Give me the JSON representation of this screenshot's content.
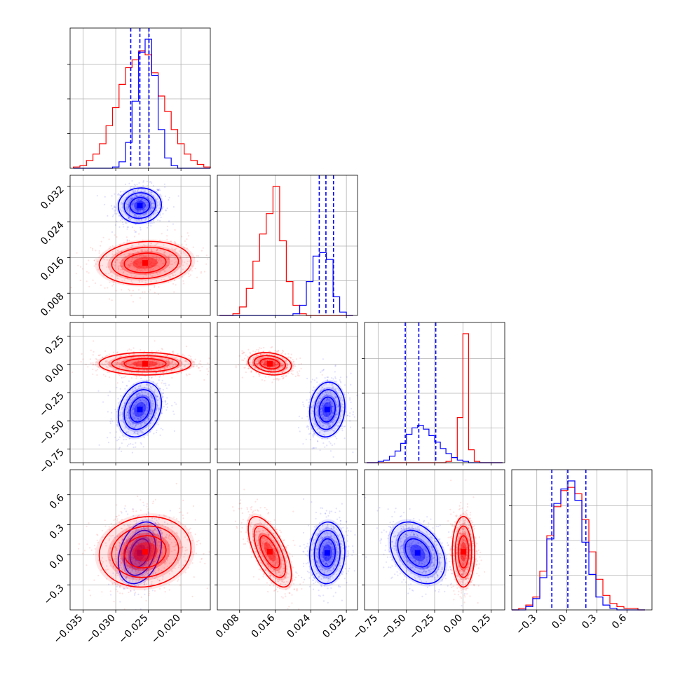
{
  "chart_data": {
    "type": "corner",
    "title": "",
    "grid": true,
    "colors": {
      "blue": "#0000ff",
      "red": "#ff0000"
    },
    "params": [
      {
        "range": [
          -0.037,
          -0.0155
        ],
        "ticks": [
          -0.035,
          -0.03,
          -0.025,
          -0.02
        ],
        "tick_labels": [
          "−0.035",
          "−0.030",
          "−0.025",
          "−0.020"
        ]
      },
      {
        "range": [
          0.003,
          0.0345
        ],
        "ticks": [
          0.008,
          0.016,
          0.024,
          0.032
        ],
        "tick_labels": [
          "0.008",
          "0.016",
          "0.024",
          "0.032"
        ]
      },
      {
        "range": [
          -0.87,
          0.37
        ],
        "ticks": [
          -0.75,
          -0.5,
          -0.25,
          0.0,
          0.25
        ],
        "tick_labels": [
          "−0.75",
          "−0.50",
          "−0.25",
          "0.00",
          "0.25"
        ]
      },
      {
        "range": [
          -0.55,
          0.85
        ],
        "ticks": [
          -0.3,
          0.0,
          0.3,
          0.6
        ],
        "tick_labels": [
          "−0.3",
          "0.0",
          "0.3",
          "0.6"
        ]
      }
    ],
    "y_axis_label_overrides": {
      "1": {
        "ticks": [
          0.008,
          0.016,
          0.024,
          0.032
        ],
        "tick_labels": [
          "0.008",
          "0.016",
          "0.024",
          "0.032"
        ]
      }
    },
    "series": [
      {
        "color": "#0000ff",
        "mean": [
          -0.0263,
          0.0277,
          -0.4,
          0.02
        ],
        "sd": [
          0.0015,
          0.0018,
          0.11,
          0.14
        ],
        "corr": [
          [
            1,
            0.05,
            0.25,
            0.3
          ],
          [
            0.05,
            1,
            0.1,
            0.05
          ],
          [
            0.25,
            0.1,
            1,
            -0.35
          ],
          [
            0.3,
            0.05,
            -0.35,
            1
          ]
        ],
        "quantiles": [
          [
            -0.0277,
            -0.0263,
            -0.0249
          ],
          [
            0.0259,
            0.0274,
            0.0291
          ],
          [
            -0.51,
            -0.39,
            -0.24
          ],
          [
            -0.15,
            0.01,
            0.19
          ]
        ]
      },
      {
        "color": "#ff0000",
        "mean": [
          -0.0255,
          0.0148,
          0.005,
          0.03
        ],
        "sd": [
          0.0032,
          0.0022,
          0.045,
          0.16
        ],
        "corr": [
          [
            1,
            0.1,
            0.0,
            0.1
          ],
          [
            0.1,
            1,
            -0.2,
            -0.65
          ],
          [
            0.0,
            -0.2,
            1,
            0.0
          ],
          [
            0.1,
            -0.65,
            0.0,
            1
          ]
        ]
      }
    ],
    "histograms": [
      {
        "edges": [
          -0.0365,
          -0.0355,
          -0.0345,
          -0.0335,
          -0.0325,
          -0.0315,
          -0.0305,
          -0.0295,
          -0.0285,
          -0.0275,
          -0.0265,
          -0.0255,
          -0.0245,
          -0.0235,
          -0.0225,
          -0.0215,
          -0.0205,
          -0.0195,
          -0.0185,
          -0.0175,
          -0.0165,
          -0.0155
        ],
        "blue": [
          0,
          0,
          0,
          0,
          0,
          0,
          1,
          5,
          20,
          52,
          90,
          100,
          72,
          30,
          8,
          2,
          0,
          0,
          0,
          0,
          0
        ],
        "red": [
          1,
          2,
          6,
          11,
          19,
          33,
          47,
          65,
          78,
          84,
          91,
          88,
          74,
          56,
          44,
          30,
          19,
          11,
          6,
          3,
          1
        ]
      },
      {
        "edges": [
          0.0035,
          0.005,
          0.0065,
          0.008,
          0.0095,
          0.011,
          0.0125,
          0.014,
          0.0155,
          0.017,
          0.0185,
          0.02,
          0.0215,
          0.023,
          0.0245,
          0.026,
          0.0275,
          0.029,
          0.0305,
          0.032,
          0.0335
        ],
        "blue": [
          0,
          0,
          0,
          0,
          0,
          0,
          0,
          0,
          0,
          0,
          0,
          1,
          6,
          20,
          35,
          37,
          33,
          11,
          2,
          0
        ],
        "red": [
          0,
          0,
          1,
          5,
          16,
          32,
          48,
          60,
          76,
          44,
          20,
          6,
          1,
          0,
          0,
          0,
          0,
          0,
          0,
          0
        ]
      },
      {
        "edges": [
          -0.85,
          -0.8,
          -0.75,
          -0.7,
          -0.65,
          -0.6,
          -0.55,
          -0.5,
          -0.45,
          -0.4,
          -0.35,
          -0.3,
          -0.25,
          -0.2,
          -0.15,
          -0.1,
          -0.05,
          0.0,
          0.05,
          0.1,
          0.15,
          0.2,
          0.25,
          0.3,
          0.35
        ],
        "blue": [
          0,
          0,
          1,
          2,
          5,
          9,
          15,
          22,
          27,
          29,
          26,
          21,
          16,
          11,
          7,
          4,
          2,
          1,
          0,
          0,
          0,
          0,
          0,
          0
        ],
        "red": [
          0,
          0,
          0,
          0,
          0,
          0,
          0,
          0,
          0,
          0,
          0,
          0,
          0,
          0,
          1,
          4,
          35,
          100,
          10,
          1,
          0,
          0,
          0,
          0
        ]
      },
      {
        "edges": [
          -0.55,
          -0.48,
          -0.41,
          -0.34,
          -0.27,
          -0.2,
          -0.13,
          -0.06,
          0.01,
          0.08,
          0.15,
          0.22,
          0.29,
          0.36,
          0.43,
          0.5,
          0.57,
          0.64,
          0.71,
          0.78
        ],
        "blue": [
          0,
          0,
          2,
          7,
          20,
          44,
          66,
          75,
          80,
          68,
          42,
          22,
          8,
          3,
          1,
          0,
          0,
          0,
          0
        ],
        "red": [
          0,
          1,
          3,
          8,
          24,
          46,
          64,
          74,
          76,
          72,
          56,
          36,
          19,
          9,
          4,
          2,
          1,
          1,
          0
        ]
      }
    ]
  }
}
